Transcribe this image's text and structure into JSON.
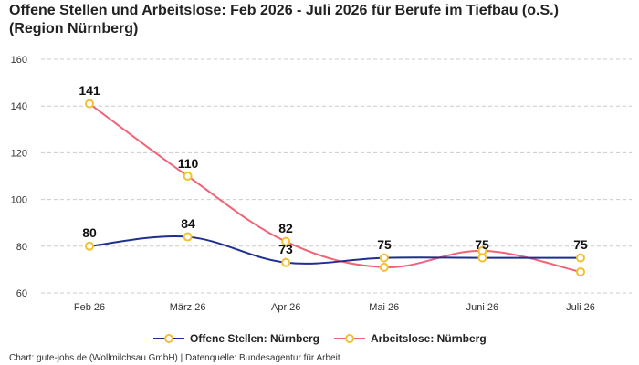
{
  "title": {
    "line1": "Offene Stellen und Arbeitslose: Feb 2026 - Juli 2026 für Berufe im Tiefbau (o.S.)",
    "line2": "(Region Nürnberg)"
  },
  "footer": "Chart: gute-jobs.de (Wollmilchsau GmbH) | Datenquelle: Bundesagentur für Arbeit",
  "colors": {
    "offene": "#1f2f8f",
    "arbeitslose": "#f06478",
    "marker_stroke": "#f2c12e",
    "grid": "#cccccc"
  },
  "chart_data": {
    "type": "line",
    "title": "Offene Stellen und Arbeitslose: Feb 2026 - Juli 2026 für Berufe im Tiefbau (o.S.) (Region Nürnberg)",
    "categories": [
      "Feb 26",
      "März 26",
      "Apr 26",
      "Mai 26",
      "Juni 26",
      "Juli 26"
    ],
    "ylim": [
      60,
      160
    ],
    "yticks": [
      60,
      80,
      100,
      120,
      140,
      160
    ],
    "grid": true,
    "legend_position": "bottom",
    "series": [
      {
        "name": "Offene Stellen: Nürnberg",
        "values": [
          80,
          84,
          73,
          75,
          75,
          75
        ],
        "color": "#1f2f8f"
      },
      {
        "name": "Arbeitslose: Nürnberg",
        "values": [
          141,
          110,
          82,
          71,
          78,
          69
        ],
        "color": "#f06478"
      }
    ],
    "data_labels": [
      {
        "category": "Feb 26",
        "text": "141"
      },
      {
        "category": "Feb 26",
        "text": "80"
      },
      {
        "category": "März 26",
        "text": "110"
      },
      {
        "category": "März 26",
        "text": "84"
      },
      {
        "category": "Apr 26",
        "text": "82"
      },
      {
        "category": "Apr 26",
        "text": "73"
      },
      {
        "category": "Mai 26",
        "text": "75"
      },
      {
        "category": "Juni 26",
        "text": "75"
      },
      {
        "category": "Juli 26",
        "text": "75"
      }
    ]
  }
}
